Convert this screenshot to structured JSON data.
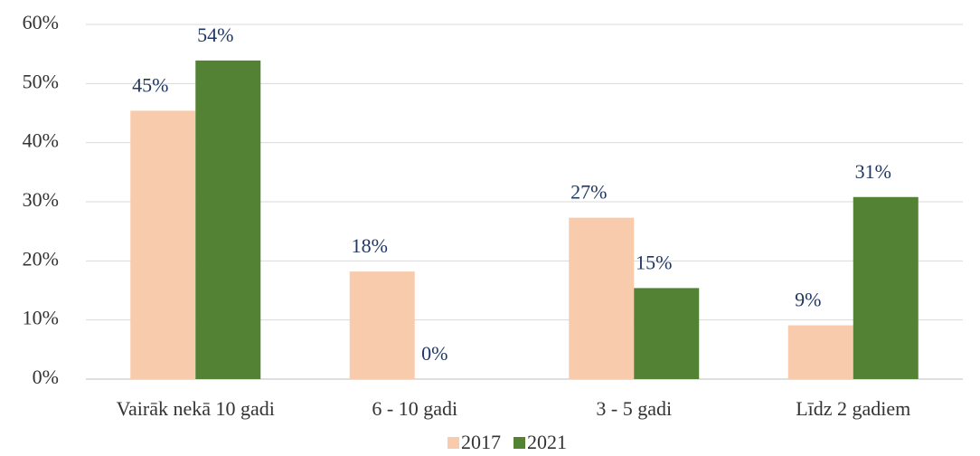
{
  "chart_data": {
    "type": "bar",
    "categories": [
      "Vairāk nekā 10 gadi",
      "6 - 10 gadi",
      "3 - 5 gadi",
      "Līdz 2 gadiem"
    ],
    "series": [
      {
        "name": "2017",
        "color": "#f8cbad",
        "values": [
          45.4,
          18.2,
          27.3,
          9.1
        ],
        "value_labels": [
          "45%",
          "18%",
          "27%",
          "9%"
        ]
      },
      {
        "name": "2021",
        "color": "#548235",
        "values": [
          53.9,
          0,
          15.4,
          30.8
        ],
        "value_labels": [
          "54%",
          "0%",
          "15%",
          "31%"
        ]
      }
    ],
    "ylim": [
      0,
      60
    ],
    "yticks": [
      {
        "value": 0,
        "label": "0%"
      },
      {
        "value": 10,
        "label": "10%"
      },
      {
        "value": 20,
        "label": "20%"
      },
      {
        "value": 30,
        "label": "30%"
      },
      {
        "value": 40,
        "label": "40%"
      },
      {
        "value": 50,
        "label": "50%"
      },
      {
        "value": 60,
        "label": "60%"
      }
    ],
    "grid": true,
    "legend": "bottom"
  }
}
